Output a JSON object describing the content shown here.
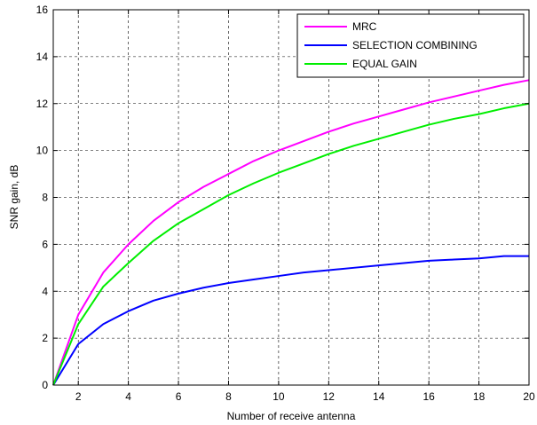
{
  "chart_data": {
    "type": "line",
    "title": "",
    "xlabel": "Number of receive antenna",
    "ylabel": "SNR gain, dB",
    "xlim": [
      1,
      20
    ],
    "ylim": [
      0,
      16
    ],
    "xticks": [
      2,
      4,
      6,
      8,
      10,
      12,
      14,
      16,
      18,
      20
    ],
    "yticks": [
      0,
      2,
      4,
      6,
      8,
      10,
      12,
      14,
      16
    ],
    "grid": true,
    "legend_position": "top-right",
    "x": [
      1,
      2,
      3,
      4,
      5,
      6,
      7,
      8,
      9,
      10,
      11,
      12,
      13,
      14,
      15,
      16,
      17,
      18,
      19,
      20
    ],
    "series": [
      {
        "name": "MRC",
        "color": "#ff00ff",
        "values": [
          0.0,
          3.0,
          4.8,
          6.0,
          7.0,
          7.8,
          8.45,
          9.0,
          9.55,
          10.0,
          10.4,
          10.8,
          11.15,
          11.45,
          11.75,
          12.05,
          12.3,
          12.55,
          12.8,
          13.0
        ]
      },
      {
        "name": "SELECTION COMBINING",
        "color": "#0000ff",
        "values": [
          0.0,
          1.75,
          2.6,
          3.15,
          3.6,
          3.9,
          4.15,
          4.35,
          4.5,
          4.65,
          4.8,
          4.9,
          5.0,
          5.1,
          5.2,
          5.3,
          5.35,
          5.4,
          5.5,
          5.5
        ]
      },
      {
        "name": "EQUAL GAIN",
        "color": "#00ee00",
        "values": [
          0.0,
          2.6,
          4.2,
          5.2,
          6.15,
          6.9,
          7.5,
          8.1,
          8.6,
          9.05,
          9.45,
          9.85,
          10.2,
          10.5,
          10.8,
          11.1,
          11.35,
          11.55,
          11.8,
          12.0
        ]
      }
    ]
  }
}
